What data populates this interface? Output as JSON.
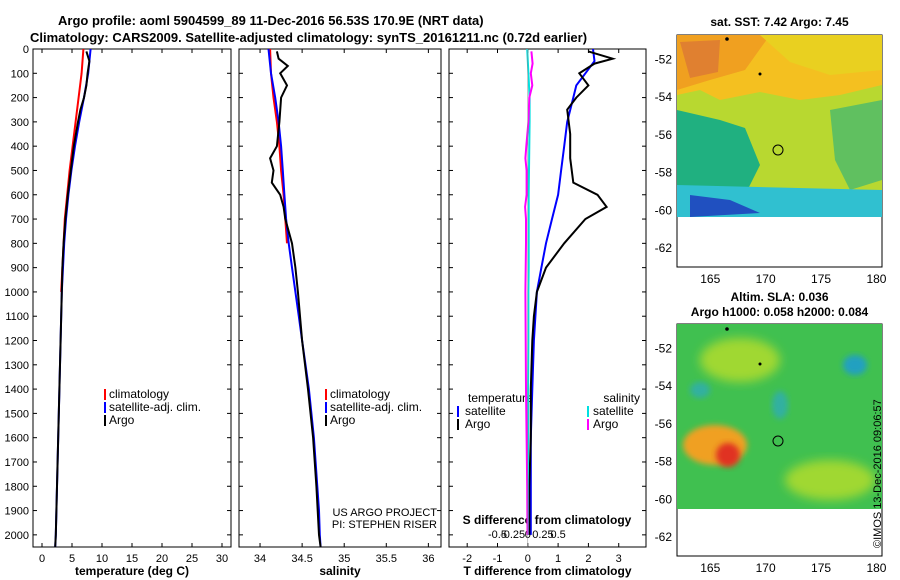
{
  "header": {
    "line1": "Argo profile: aoml 5904599_89 11-Dec-2016 56.53S 170.9E (NRT data)",
    "line2": "Climatology: CARS2009. Satellite-adjusted climatology: synTS_20161211.nc (0.72d earlier)"
  },
  "colors": {
    "climatology": "#ff0000",
    "satellite": "#0000ff",
    "argo": "#000000",
    "sat_salinity": "#00e0e0",
    "argo_salinity": "#ff00ff"
  },
  "chart_data": [
    {
      "type": "line",
      "name": "temperature-profile",
      "xlabel": "temperature (deg C)",
      "xlim": [
        -1.5,
        31.5
      ],
      "ylim": [
        0,
        2050
      ],
      "xticks": [
        0,
        5,
        10,
        15,
        20,
        25,
        30
      ],
      "yticks": [
        0,
        100,
        200,
        300,
        400,
        500,
        600,
        700,
        800,
        900,
        1000,
        1100,
        1200,
        1300,
        1400,
        1500,
        1600,
        1700,
        1800,
        1900,
        2000
      ],
      "legend": [
        "climatology",
        "satellite-adj. clim.",
        "Argo"
      ],
      "series": [
        {
          "name": "climatology",
          "color": "#ff0000",
          "depth": [
            0,
            100,
            200,
            300,
            400,
            500,
            600,
            700,
            800,
            900,
            1000
          ],
          "values": [
            6.9,
            6.6,
            6.1,
            5.6,
            5.1,
            4.6,
            4.2,
            3.8,
            3.6,
            3.4,
            3.2
          ]
        },
        {
          "name": "satellite-adj. clim.",
          "color": "#0000ff",
          "depth": [
            0,
            100,
            200,
            300,
            400,
            500,
            600,
            700,
            800,
            900,
            1000,
            1100,
            1200,
            1300,
            1400,
            1500,
            1600,
            1700,
            1800,
            1900,
            2000,
            2050
          ],
          "values": [
            8.1,
            7.7,
            7.0,
            6.2,
            5.5,
            4.9,
            4.4,
            4.0,
            3.7,
            3.5,
            3.3,
            3.2,
            3.1,
            3.0,
            2.9,
            2.8,
            2.7,
            2.6,
            2.5,
            2.4,
            2.3,
            2.2
          ]
        },
        {
          "name": "Argo",
          "color": "#000000",
          "depth": [
            10,
            50,
            100,
            150,
            200,
            250,
            300,
            400,
            500,
            600,
            700,
            800,
            900,
            1000,
            1200,
            1400,
            1600,
            1800,
            2000,
            2050
          ],
          "values": [
            7.4,
            7.9,
            7.6,
            7.4,
            7.0,
            6.4,
            6.0,
            5.3,
            4.8,
            4.3,
            3.9,
            3.6,
            3.4,
            3.3,
            3.1,
            2.9,
            2.7,
            2.5,
            2.3,
            2.2
          ]
        }
      ]
    },
    {
      "type": "line",
      "name": "salinity-profile",
      "xlabel": "salinity",
      "xlim": [
        33.75,
        36.15
      ],
      "ylim": [
        0,
        2050
      ],
      "xticks": [
        34,
        34.5,
        35,
        35.5,
        36
      ],
      "xticklabels": [
        "34",
        "34.5",
        "35",
        "35.5",
        "36"
      ],
      "legend": [
        "climatology",
        "satellite-adj. clim.",
        "Argo"
      ],
      "annotation": [
        "US ARGO PROJECT",
        "PI: STEPHEN RISER"
      ],
      "series": [
        {
          "name": "climatology",
          "color": "#ff0000",
          "depth": [
            0,
            100,
            200,
            300,
            400,
            500,
            600,
            700,
            800
          ],
          "values": [
            34.12,
            34.13,
            34.16,
            34.2,
            34.23,
            34.25,
            34.28,
            34.3,
            34.32
          ]
        },
        {
          "name": "satellite-adj. clim.",
          "color": "#0000ff",
          "depth": [
            0,
            100,
            200,
            300,
            400,
            500,
            600,
            700,
            800,
            900,
            1000,
            1100,
            1200,
            1300,
            1400,
            1500,
            1600,
            1700,
            1800,
            1900,
            2000,
            2050
          ],
          "values": [
            34.1,
            34.13,
            34.18,
            34.22,
            34.25,
            34.27,
            34.29,
            34.31,
            34.34,
            34.38,
            34.42,
            34.46,
            34.5,
            34.54,
            34.58,
            34.61,
            34.64,
            34.66,
            34.68,
            34.7,
            34.71,
            34.72
          ]
        },
        {
          "name": "Argo",
          "color": "#000000",
          "depth": [
            10,
            40,
            70,
            100,
            150,
            200,
            300,
            400,
            450,
            500,
            550,
            600,
            650,
            700,
            800,
            900,
            1000,
            1200,
            1400,
            1600,
            1800,
            2000,
            2050
          ],
          "values": [
            34.2,
            34.22,
            34.33,
            34.24,
            34.32,
            34.25,
            34.23,
            34.2,
            34.12,
            34.16,
            34.14,
            34.24,
            34.28,
            34.3,
            34.38,
            34.42,
            34.45,
            34.5,
            34.57,
            34.63,
            34.67,
            34.7,
            34.72
          ]
        }
      ]
    },
    {
      "type": "line",
      "name": "difference-profile",
      "xlabel": "T difference from climatology",
      "xlabel_top": "S difference from climatology",
      "xlim": [
        -2.6,
        3.9
      ],
      "ylim": [
        0,
        2050
      ],
      "xticks": [
        -2,
        -1,
        0,
        1,
        2,
        3
      ],
      "xticklabels": [
        "-2",
        "-1",
        "0",
        "1",
        "2",
        "3"
      ],
      "sticks": [
        -0.5,
        -0.25,
        0,
        0.25,
        0.5
      ],
      "sticklabels": [
        "-0.5",
        "-0.25",
        "0",
        "0.25",
        "0.5"
      ],
      "legend_left": [
        "temperature",
        "satellite",
        "Argo"
      ],
      "legend_right": [
        "salinity",
        "satellite",
        "Argo"
      ],
      "series": [
        {
          "name": "T satellite",
          "color": "#0000ff",
          "depth": [
            0,
            50,
            100,
            150,
            200,
            300,
            400,
            500,
            600,
            700,
            800,
            900,
            1000,
            1200,
            1400,
            1600,
            1800,
            2000
          ],
          "values": [
            2.15,
            2.2,
            1.9,
            1.6,
            1.5,
            1.3,
            1.2,
            1.1,
            1.0,
            0.8,
            0.6,
            0.45,
            0.3,
            0.2,
            0.15,
            0.1,
            0.1,
            0.1
          ]
        },
        {
          "name": "T Argo",
          "color": "#000000",
          "depth": [
            10,
            40,
            60,
            100,
            150,
            200,
            250,
            350,
            450,
            550,
            600,
            650,
            700,
            800,
            900,
            1000,
            1100,
            1200,
            1400,
            1600,
            1800,
            2000
          ],
          "values": [
            2.0,
            2.8,
            2.2,
            1.7,
            2.0,
            1.6,
            1.3,
            1.4,
            1.4,
            1.5,
            2.3,
            2.6,
            1.9,
            1.2,
            0.6,
            0.3,
            0.2,
            0.15,
            0.1,
            0.1,
            0.05,
            0.05
          ]
        },
        {
          "name": "S satellite",
          "color": "#00e0e0",
          "depth": [
            0,
            50,
            100,
            200,
            300,
            400,
            500,
            600,
            700,
            800,
            900,
            1000,
            1200,
            1400,
            1600,
            1800,
            2000
          ],
          "values": [
            -0.02,
            0.0,
            0.02,
            0.06,
            0.06,
            0.05,
            0.04,
            0.03,
            0.03,
            0.03,
            0.03,
            0.02,
            0.02,
            0.01,
            0.01,
            0.0,
            0.0
          ]
        },
        {
          "name": "S Argo",
          "color": "#ff00ff",
          "depth": [
            10,
            60,
            100,
            150,
            200,
            300,
            400,
            450,
            500,
            600,
            650,
            700,
            800,
            900,
            1000,
            1200,
            1400,
            1600,
            1800,
            2000
          ],
          "values": [
            0.12,
            0.16,
            0.1,
            0.15,
            0.05,
            0.02,
            -0.05,
            -0.08,
            -0.04,
            -0.04,
            -0.09,
            -0.06,
            -0.06,
            -0.07,
            -0.08,
            -0.07,
            -0.06,
            -0.04,
            -0.02,
            -0.01
          ]
        }
      ]
    },
    {
      "type": "heatmap",
      "name": "sst-map",
      "title": "sat. SST: 7.42 Argo: 7.45",
      "xlim": [
        162,
        180.5
      ],
      "ylim": [
        -63,
        -50.7
      ],
      "xticks": [
        165,
        170,
        175,
        180
      ],
      "yticks": [
        -52,
        -54,
        -56,
        -58,
        -60,
        -62
      ],
      "argo_position": [
        170.9,
        -56.53
      ]
    },
    {
      "type": "heatmap",
      "name": "sla-map",
      "title": "Altim. SLA: 0.036",
      "subtitle": "Argo h1000: 0.058 h2000: 0.084",
      "xlim": [
        162,
        180.5
      ],
      "ylim": [
        -63,
        -50.7
      ],
      "xticks": [
        165,
        170,
        175,
        180
      ],
      "yticks": [
        -52,
        -54,
        -56,
        -58,
        -60,
        -62
      ],
      "argo_position": [
        170.9,
        -56.53
      ]
    }
  ],
  "watermark": "©IMOS 13-Dec-2016 09:06:57"
}
